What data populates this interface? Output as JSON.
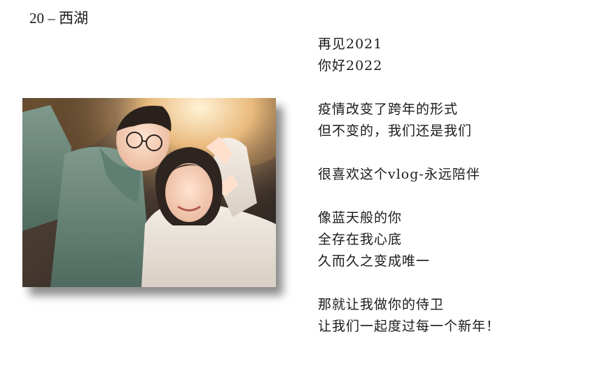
{
  "slide": {
    "title": "20 – 西湖"
  },
  "photo": {
    "icon": "couple-selfie-photo"
  },
  "poem": {
    "stanzas": [
      [
        "再见2021",
        "你好2022"
      ],
      [
        "疫情改变了跨年的形式",
        "但不变的，我们还是我们"
      ],
      [
        "很喜欢这个vlog-永远陪伴"
      ],
      [
        "像蓝天般的你",
        "全存在我心底",
        "久而久之变成唯一"
      ],
      [
        "那就让我做你的侍卫",
        "让我们一起度过每一个新年！"
      ]
    ]
  }
}
